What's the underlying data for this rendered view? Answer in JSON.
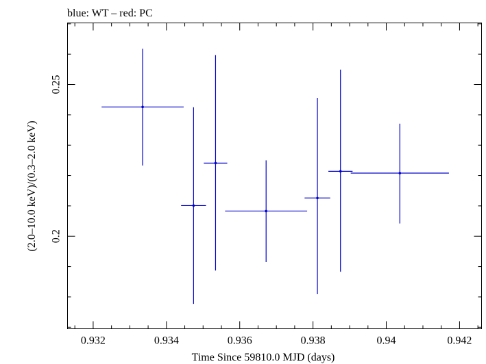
{
  "chart_data": {
    "type": "scatter",
    "title": "blue: WT – red: PC",
    "xlabel": "Time Since 59810.0 MJD (days)",
    "ylabel": "(2.0–10.0 keV)/(0.3–2.0 keV)",
    "xlim": [
      0.9313,
      0.9426
    ],
    "ylim": [
      0.1695,
      0.2703
    ],
    "log_y": false,
    "grid": false,
    "x_ticks": [
      0.932,
      0.934,
      0.936,
      0.938,
      0.94,
      0.942
    ],
    "x_tick_labels": [
      "0.932",
      "0.934",
      "0.936",
      "0.938",
      "0.94",
      "0.942"
    ],
    "y_ticks": [
      0.2,
      0.25
    ],
    "y_tick_labels": [
      "0.2",
      "0.25"
    ],
    "series": [
      {
        "name": "WT",
        "color": "#0000cc",
        "points": [
          {
            "x": 0.93335,
            "y": 0.2426,
            "xerr_low": 0.00112,
            "xerr_high": 0.00112,
            "y_low": 0.2233,
            "y_high": 0.2618
          },
          {
            "x": 0.93474,
            "y": 0.2101,
            "xerr_low": 0.00034,
            "xerr_high": 0.00034,
            "y_low": 0.1777,
            "y_high": 0.2425
          },
          {
            "x": 0.93534,
            "y": 0.2241,
            "xerr_low": 0.00032,
            "xerr_high": 0.00032,
            "y_low": 0.1887,
            "y_high": 0.2597
          },
          {
            "x": 0.93672,
            "y": 0.2083,
            "xerr_low": 0.00112,
            "xerr_high": 0.00112,
            "y_low": 0.1915,
            "y_high": 0.225
          },
          {
            "x": 0.93812,
            "y": 0.2126,
            "xerr_low": 0.00035,
            "xerr_high": 0.00035,
            "y_low": 0.1809,
            "y_high": 0.2456
          },
          {
            "x": 0.93875,
            "y": 0.2214,
            "xerr_low": 0.00033,
            "xerr_high": 0.00033,
            "y_low": 0.1883,
            "y_high": 0.2549
          },
          {
            "x": 0.94037,
            "y": 0.2208,
            "xerr_low": 0.00134,
            "xerr_high": 0.00134,
            "y_low": 0.2042,
            "y_high": 0.2371
          }
        ]
      }
    ]
  }
}
